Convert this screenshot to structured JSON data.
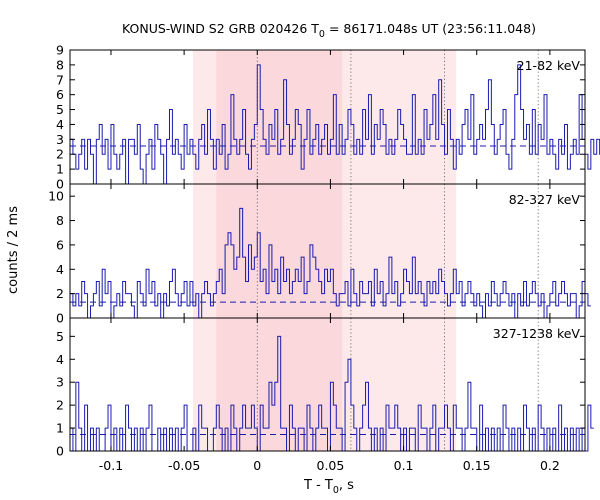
{
  "chart_data": {
    "type": "line",
    "title": "KONUS-WIND S2 GRB 020426 T₀ = 86171.048s UT (23:56:11.048)",
    "title_parts": {
      "prefix": "KONUS-WIND S2 GRB 020426 T",
      "sub": "0",
      "suffix": " = 86171.048s UT (23:56:11.048)"
    },
    "xlabel": "T - T₀, s",
    "xlabel_parts": {
      "prefix": "T - T",
      "sub": "0",
      "suffix": ", s"
    },
    "ylabel": "counts / 2 ms",
    "xlim": [
      -0.128,
      0.224
    ],
    "xticks": [
      -0.1,
      -0.05,
      0,
      0.05,
      0.1,
      0.15,
      0.2
    ],
    "xtick_labels": [
      "-0.1",
      "-0.05",
      "0",
      "0.05",
      "0.1",
      "0.15",
      "0.2"
    ],
    "bin_width": 0.002,
    "shaded_regions": [
      {
        "x": [
          -0.044,
          0.136
        ],
        "color": "#fde9ea"
      },
      {
        "x": [
          -0.028,
          0.058
        ],
        "color": "#fbd8dc"
      }
    ],
    "vlines": [
      0,
      0.064,
      0.128,
      0.192
    ],
    "line_color": "#1b1bb0",
    "dashed_color": "#1b1bb0",
    "panels": [
      {
        "band": "21-82 keV",
        "ylim": [
          0,
          9
        ],
        "yticks": [
          0,
          1,
          2,
          3,
          4,
          5,
          6,
          7,
          8,
          9
        ],
        "background": 2.55,
        "counts": [
          3,
          2,
          1,
          2,
          3,
          1,
          3,
          2,
          0,
          3,
          4,
          2,
          3,
          1,
          4,
          2,
          1,
          2,
          3,
          0,
          3,
          3,
          2,
          4,
          1,
          0,
          2,
          3,
          1,
          4,
          3,
          2,
          0,
          3,
          5,
          2,
          3,
          2,
          1,
          4,
          2,
          3,
          2,
          1,
          3,
          4,
          2,
          5,
          3,
          1,
          3,
          2,
          4,
          1,
          2,
          6,
          3,
          2,
          3,
          5,
          2,
          1,
          3,
          4,
          8,
          5,
          3,
          2,
          4,
          3,
          5,
          2,
          3,
          7,
          4,
          2,
          3,
          5,
          4,
          1,
          3,
          5,
          2,
          3,
          4,
          2,
          3,
          4,
          2,
          3,
          6,
          2,
          4,
          2,
          3,
          5,
          4,
          2,
          3,
          2,
          5,
          3,
          6,
          2,
          4,
          3,
          5,
          4,
          2,
          3,
          2,
          3,
          5,
          4,
          3,
          2,
          2,
          6,
          2,
          3,
          2,
          5,
          3,
          4,
          6,
          3,
          7,
          4,
          2,
          5,
          3,
          1,
          3,
          2,
          4,
          5,
          3,
          6,
          2,
          3,
          4,
          3,
          5,
          7,
          4,
          2,
          3,
          4,
          5,
          2,
          1,
          3,
          6,
          8,
          5,
          3,
          4,
          2,
          5,
          2,
          4,
          3,
          6,
          2,
          3,
          2,
          1,
          3,
          2,
          4,
          1,
          2,
          3,
          2,
          6,
          3,
          2,
          1,
          3,
          2,
          3,
          2,
          3
        ]
      },
      {
        "band": "82-327 keV",
        "ylim": [
          0,
          11
        ],
        "yticks": [
          0,
          2,
          4,
          6,
          8,
          10
        ],
        "background": 1.3,
        "counts": [
          2,
          1,
          2,
          1,
          3,
          2,
          0,
          1,
          2,
          3,
          1,
          4,
          2,
          3,
          0,
          1,
          2,
          1,
          3,
          2,
          2,
          1,
          0,
          3,
          2,
          1,
          4,
          2,
          3,
          1,
          2,
          0,
          2,
          1,
          3,
          4,
          2,
          1,
          2,
          3,
          1,
          3,
          1,
          2,
          0,
          2,
          3,
          2,
          1,
          2,
          3,
          4,
          2,
          6,
          7,
          6,
          4,
          5,
          9,
          5,
          3,
          6,
          4,
          5,
          7,
          3,
          4,
          2,
          6,
          3,
          4,
          2,
          5,
          3,
          4,
          2,
          3,
          4,
          3,
          5,
          2,
          3,
          6,
          5,
          4,
          3,
          2,
          4,
          3,
          4,
          2,
          1,
          2,
          2,
          3,
          1,
          4,
          2,
          1,
          3,
          2,
          2,
          3,
          1,
          4,
          2,
          3,
          1,
          2,
          5,
          2,
          3,
          1,
          2,
          4,
          3,
          2,
          5,
          2,
          3,
          2,
          1,
          3,
          2,
          3,
          2,
          4,
          3,
          2,
          1,
          2,
          4,
          2,
          3,
          1,
          2,
          3,
          2,
          1,
          2,
          1,
          0,
          2,
          1,
          3,
          2,
          1,
          2,
          3,
          2,
          1,
          2,
          0,
          2,
          1,
          3,
          1,
          2,
          3,
          2,
          1,
          2,
          0,
          1,
          2,
          3,
          1,
          2,
          3,
          2,
          1,
          2,
          2,
          0,
          1,
          3,
          2,
          1
        ]
      },
      {
        "band": "327-1238 keV",
        "ylim": [
          0,
          5.8
        ],
        "yticks": [
          0,
          1,
          2,
          3,
          4,
          5
        ],
        "background": 0.72,
        "counts": [
          1,
          0,
          3,
          1,
          0,
          2,
          0,
          1,
          0,
          1,
          0,
          0,
          1,
          2,
          0,
          1,
          0,
          1,
          0,
          2,
          1,
          0,
          1,
          0,
          1,
          0,
          1,
          2,
          0,
          0,
          1,
          0,
          1,
          0,
          1,
          0,
          1,
          0,
          1,
          2,
          0,
          0,
          1,
          0,
          2,
          1,
          1,
          0,
          0,
          1,
          2,
          1,
          0,
          1,
          0,
          2,
          1,
          0,
          1,
          2,
          1,
          1,
          2,
          1,
          0,
          2,
          1,
          1,
          3,
          2,
          3,
          5,
          1,
          1,
          0,
          2,
          1,
          0,
          1,
          1,
          0,
          2,
          1,
          0,
          1,
          2,
          1,
          1,
          0,
          3,
          2,
          1,
          1,
          0,
          3,
          4,
          2,
          1,
          0,
          1,
          2,
          3,
          1,
          0,
          1,
          0,
          1,
          0,
          2,
          1,
          1,
          2,
          1,
          0,
          1,
          0,
          1,
          1,
          0,
          2,
          1,
          1,
          0,
          1,
          2,
          0,
          1,
          1,
          2,
          1,
          0,
          2,
          1,
          1,
          0,
          1,
          3,
          1,
          1,
          0,
          2,
          0,
          1,
          0,
          1,
          0,
          1,
          0,
          2,
          1,
          0,
          1,
          0,
          1,
          0,
          2,
          1,
          0,
          1,
          0,
          2,
          1,
          0,
          1,
          0,
          1,
          0,
          2,
          0,
          1,
          0,
          1,
          0,
          1,
          0,
          1,
          0,
          2,
          1
        ]
      }
    ]
  }
}
